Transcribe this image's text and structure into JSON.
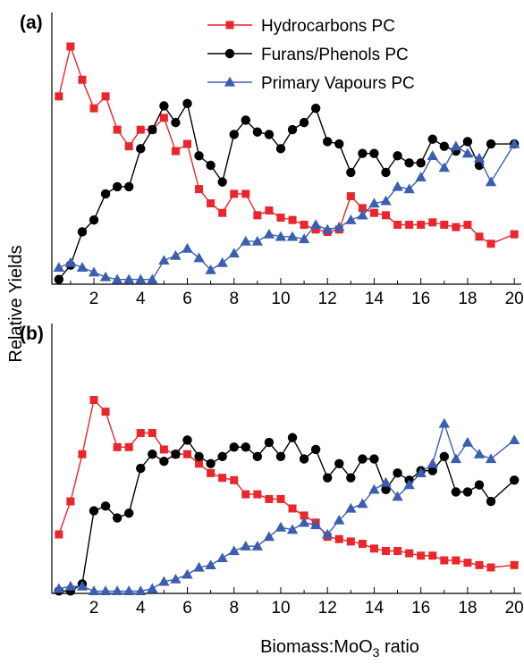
{
  "chart_data": {
    "type": "line",
    "xlabel_main": "Biomass:MoO",
    "xlabel_sub": "3",
    "xlabel_tail": " ratio",
    "ylabel": "Relative Yields",
    "legend_placement": "top-right (panel a)",
    "grid": false,
    "x_ticks": [
      "2",
      "4",
      "6",
      "8",
      "10",
      "12",
      "14",
      "16",
      "18",
      "20"
    ],
    "xlim": [
      0.2,
      20.3
    ],
    "ylim": [
      0,
      100
    ],
    "x": [
      0.5,
      1,
      1.5,
      2,
      2.5,
      3,
      3.5,
      4,
      4.5,
      5,
      5.5,
      6,
      6.5,
      7,
      7.5,
      8,
      8.5,
      9,
      9.5,
      10,
      10.5,
      11,
      11.5,
      12,
      12.5,
      13,
      13.5,
      14,
      14.5,
      15,
      15.5,
      16,
      16.5,
      17,
      17.5,
      18,
      18.5,
      19,
      20
    ],
    "panels": [
      {
        "label": "(a)",
        "series": [
          {
            "name": "Hydrocarbons PC",
            "color": "#e8262b",
            "marker": "square",
            "values": [
              79,
              100,
              86,
              74,
              79,
              65,
              58,
              65,
              65,
              70,
              56,
              59,
              40,
              34,
              30,
              38,
              38,
              29,
              31,
              28,
              27,
              25,
              23,
              22,
              23,
              37,
              32,
              30,
              29,
              25,
              25,
              25,
              26,
              25,
              24,
              25,
              20,
              17,
              21
            ]
          },
          {
            "name": "Furans/Phenols PC",
            "color": "#000000",
            "marker": "circle",
            "values": [
              2,
              8,
              22,
              27,
              38,
              41,
              41,
              57,
              65,
              75,
              68,
              76,
              54,
              50,
              43,
              63,
              69,
              64,
              63,
              57,
              65,
              68,
              74,
              60,
              59,
              47,
              55,
              55,
              47,
              54,
              51,
              51,
              61,
              58,
              56,
              60,
              50,
              59,
              59
            ]
          },
          {
            "name": "Primary Vapours PC",
            "color": "#3b5fb0",
            "marker": "triangle",
            "values": [
              7,
              9,
              7,
              5,
              3,
              2,
              2,
              2,
              2,
              10,
              12,
              15,
              11,
              6,
              9,
              13,
              18,
              18,
              21,
              20,
              20,
              19,
              25,
              23,
              24,
              27,
              29,
              34,
              35,
              41,
              40,
              45,
              54,
              49,
              58,
              55,
              53,
              43,
              59
            ]
          }
        ]
      },
      {
        "label": "(b)",
        "series": [
          {
            "name": "Hydrocarbons PC",
            "color": "#e8262b",
            "marker": "square",
            "values": [
              25,
              39,
              59,
              82,
              77,
              62,
              62,
              68,
              68,
              61,
              59,
              59,
              55,
              51,
              49,
              48,
              42,
              42,
              40,
              40,
              36,
              33,
              30,
              24,
              23,
              22,
              21,
              19,
              18,
              18,
              17,
              16,
              16,
              14,
              14,
              13,
              12,
              11,
              12
            ]
          },
          {
            "name": "Furans/Phenols PC",
            "color": "#000000",
            "marker": "circle",
            "values": [
              1,
              1,
              4,
              35,
              37,
              32,
              34,
              53,
              59,
              56,
              59,
              65,
              58,
              55,
              58,
              62,
              62,
              58,
              64,
              58,
              66,
              57,
              61,
              49,
              55,
              49,
              57,
              57,
              44,
              51,
              48,
              52,
              52,
              58,
              43,
              43,
              46,
              39,
              48
            ]
          },
          {
            "name": "Primary Vapours PC",
            "color": "#3b5fb0",
            "marker": "triangle",
            "values": [
              2,
              3,
              3,
              1,
              1,
              1,
              1,
              1,
              2,
              5,
              6,
              8,
              11,
              12,
              15,
              18,
              20,
              20,
              24,
              28,
              27,
              30,
              29,
              25,
              31,
              36,
              38,
              44,
              47,
              41,
              46,
              51,
              55,
              72,
              57,
              64,
              59,
              57,
              65
            ]
          }
        ]
      }
    ]
  }
}
